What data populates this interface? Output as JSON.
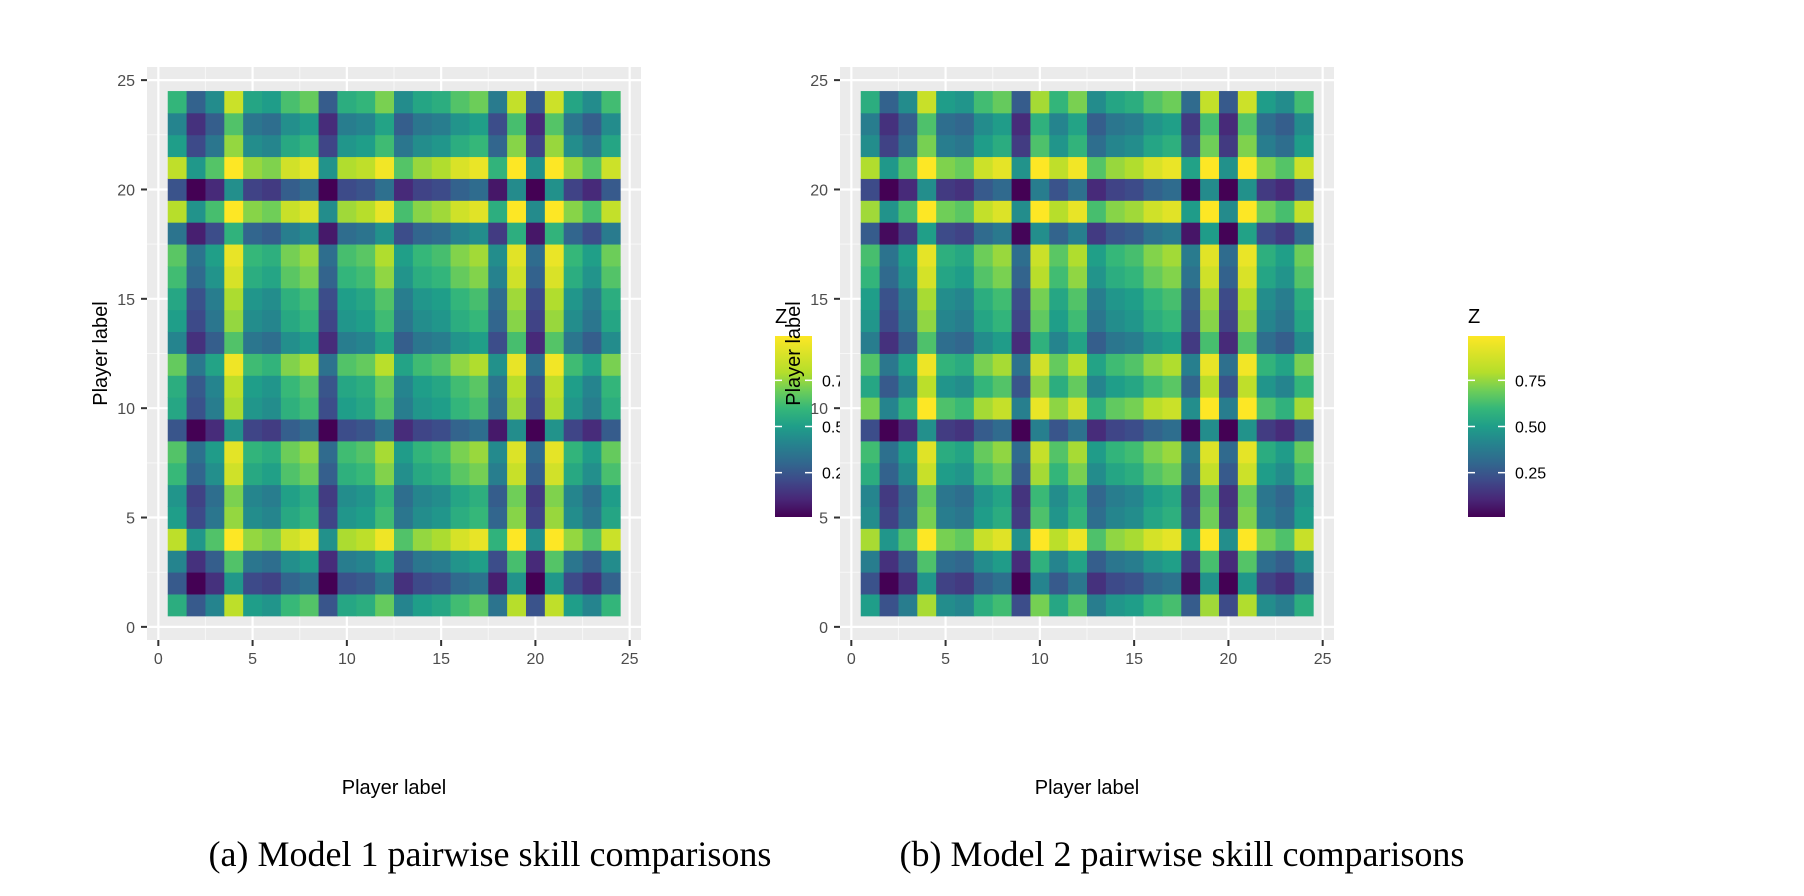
{
  "chart_data": [
    {
      "type": "heatmap",
      "caption": "(a) Model 1 pairwise skill comparisons",
      "xlabel": "Player label",
      "ylabel": "Player label",
      "xlim": [
        0,
        25
      ],
      "ylim": [
        0,
        25
      ],
      "x_ticks": [
        "0",
        "5",
        "10",
        "15",
        "20",
        "25"
      ],
      "y_ticks": [
        "0",
        "5",
        "10",
        "15",
        "20",
        "25"
      ],
      "players": [
        1,
        2,
        3,
        4,
        5,
        6,
        7,
        8,
        9,
        10,
        11,
        12,
        13,
        14,
        15,
        16,
        17,
        18,
        19,
        20,
        21,
        22,
        23,
        24
      ],
      "skills": [
        0.55,
        0.05,
        0.3,
        0.98,
        0.45,
        0.4,
        0.62,
        0.7,
        0.02,
        0.5,
        0.55,
        0.75,
        0.3,
        0.45,
        0.5,
        0.65,
        0.72,
        0.2,
        0.95,
        0.01,
        0.99,
        0.45,
        0.3,
        0.6
      ],
      "legend": {
        "title": "Z",
        "position": "right",
        "labels": [
          "0.25",
          "0.50",
          "0.75"
        ]
      },
      "grid": true
    },
    {
      "type": "heatmap",
      "caption": "(b) Model 2 pairwise skill comparisons",
      "xlabel": "Player label",
      "ylabel": "Player label",
      "xlim": [
        0,
        25
      ],
      "ylim": [
        0,
        25
      ],
      "x_ticks": [
        "0",
        "5",
        "10",
        "15",
        "20",
        "25"
      ],
      "y_ticks": [
        "0",
        "5",
        "10",
        "15",
        "20",
        "25"
      ],
      "players": [
        1,
        2,
        3,
        4,
        5,
        6,
        7,
        8,
        9,
        10,
        11,
        12,
        13,
        14,
        15,
        16,
        17,
        18,
        19,
        20,
        21,
        22,
        23,
        24
      ],
      "skills": [
        0.5,
        0.05,
        0.3,
        0.97,
        0.4,
        0.35,
        0.6,
        0.7,
        0.02,
        0.85,
        0.55,
        0.75,
        0.3,
        0.45,
        0.5,
        0.65,
        0.72,
        0.1,
        0.95,
        0.01,
        0.99,
        0.4,
        0.3,
        0.6
      ],
      "legend": {
        "title": "Z",
        "position": "right",
        "labels": [
          "0.25",
          "0.50",
          "0.75"
        ]
      },
      "grid": true
    }
  ]
}
